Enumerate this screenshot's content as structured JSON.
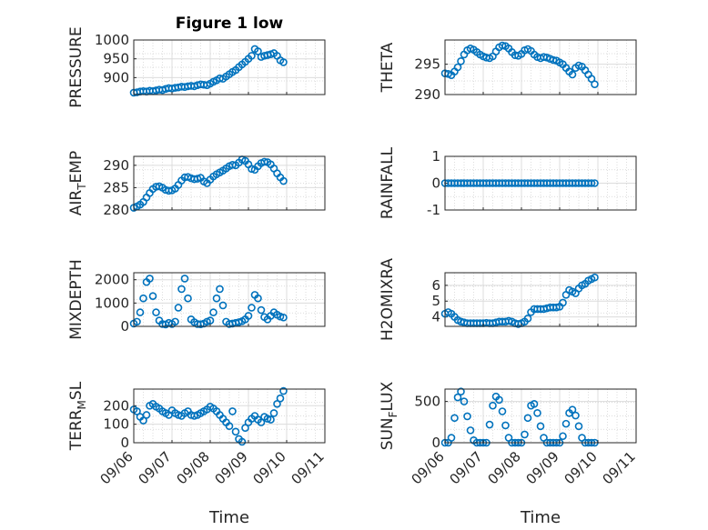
{
  "figure": {
    "title": "Figure 1 low",
    "xlabel": "Time",
    "marker_color": "#0072BD"
  },
  "chart_data": [
    {
      "id": "pressure",
      "type": "scatter",
      "ylabel": "PRESSURE",
      "xlim": [
        "09/06",
        "09/11"
      ],
      "ylim": [
        855,
        1000
      ],
      "yticks": [
        "900",
        "950",
        "1000"
      ],
      "x": [
        "09/06 00:00",
        "09/06 02:00",
        "09/06 04:00",
        "09/06 06:00",
        "09/06 08:00",
        "09/06 10:00",
        "09/06 12:00",
        "09/06 14:00",
        "09/06 16:00",
        "09/06 18:00",
        "09/06 20:00",
        "09/06 22:00",
        "09/07 00:00",
        "09/07 02:00",
        "09/07 04:00",
        "09/07 06:00",
        "09/07 08:00",
        "09/07 10:00",
        "09/07 12:00",
        "09/07 14:00",
        "09/07 16:00",
        "09/07 18:00",
        "09/07 20:00",
        "09/07 22:00",
        "09/08 00:00",
        "09/08 02:00",
        "09/08 04:00",
        "09/08 06:00",
        "09/08 08:00",
        "09/08 10:00",
        "09/08 12:00",
        "09/08 14:00",
        "09/08 16:00",
        "09/08 18:00",
        "09/08 20:00",
        "09/08 22:00",
        "09/09 00:00",
        "09/09 02:00",
        "09/09 04:00",
        "09/09 06:00",
        "09/09 08:00",
        "09/09 10:00",
        "09/09 12:00",
        "09/09 14:00",
        "09/09 16:00",
        "09/09 18:00",
        "09/09 20:00",
        "09/09 22:00"
      ],
      "y": [
        860,
        861,
        863,
        864,
        863,
        865,
        864,
        866,
        868,
        867,
        870,
        872,
        871,
        873,
        874,
        876,
        875,
        877,
        878,
        877,
        880,
        882,
        881,
        880,
        884,
        889,
        893,
        898,
        897,
        903,
        909,
        915,
        920,
        928,
        935,
        942,
        950,
        958,
        976,
        970,
        955,
        958,
        960,
        962,
        965,
        958,
        946,
        941
      ]
    },
    {
      "id": "theta",
      "type": "scatter",
      "ylabel": "THETA",
      "xlim": [
        "09/06",
        "09/11"
      ],
      "ylim": [
        290,
        299
      ],
      "yticks": [
        "290",
        "295"
      ],
      "x": [
        "09/06 00:00",
        "09/06 02:00",
        "09/06 04:00",
        "09/06 06:00",
        "09/06 08:00",
        "09/06 10:00",
        "09/06 12:00",
        "09/06 14:00",
        "09/06 16:00",
        "09/06 18:00",
        "09/06 20:00",
        "09/06 22:00",
        "09/07 00:00",
        "09/07 02:00",
        "09/07 04:00",
        "09/07 06:00",
        "09/07 08:00",
        "09/07 10:00",
        "09/07 12:00",
        "09/07 14:00",
        "09/07 16:00",
        "09/07 18:00",
        "09/07 20:00",
        "09/07 22:00",
        "09/08 00:00",
        "09/08 02:00",
        "09/08 04:00",
        "09/08 06:00",
        "09/08 08:00",
        "09/08 10:00",
        "09/08 12:00",
        "09/08 14:00",
        "09/08 16:00",
        "09/08 18:00",
        "09/08 20:00",
        "09/08 22:00",
        "09/09 00:00",
        "09/09 02:00",
        "09/09 04:00",
        "09/09 06:00",
        "09/09 08:00",
        "09/09 10:00",
        "09/09 12:00",
        "09/09 14:00",
        "09/09 16:00",
        "09/09 18:00",
        "09/09 20:00",
        "09/09 22:00"
      ],
      "y": [
        293.5,
        293.4,
        293.2,
        293.8,
        294.5,
        295.5,
        296.6,
        297.3,
        297.6,
        297.4,
        297.0,
        296.6,
        296.3,
        296.1,
        296.0,
        296.3,
        297.1,
        297.8,
        298.1,
        298.0,
        297.6,
        297.0,
        296.5,
        296.4,
        296.7,
        297.3,
        297.5,
        297.2,
        296.6,
        296.2,
        296.0,
        296.2,
        296.1,
        295.9,
        295.7,
        295.6,
        295.3,
        295.0,
        294.4,
        293.8,
        293.3,
        294.4,
        294.8,
        294.6,
        294.0,
        293.3,
        292.6,
        291.7
      ]
    },
    {
      "id": "air_temp",
      "type": "scatter",
      "ylabel": "AIR_TEMP",
      "xlim": [
        "09/06",
        "09/11"
      ],
      "ylim": [
        280,
        292
      ],
      "yticks": [
        "280",
        "285",
        "290"
      ],
      "x": [
        "09/06 00:00",
        "09/06 02:00",
        "09/06 04:00",
        "09/06 06:00",
        "09/06 08:00",
        "09/06 10:00",
        "09/06 12:00",
        "09/06 14:00",
        "09/06 16:00",
        "09/06 18:00",
        "09/06 20:00",
        "09/06 22:00",
        "09/07 00:00",
        "09/07 02:00",
        "09/07 04:00",
        "09/07 06:00",
        "09/07 08:00",
        "09/07 10:00",
        "09/07 12:00",
        "09/07 14:00",
        "09/07 16:00",
        "09/07 18:00",
        "09/07 20:00",
        "09/07 22:00",
        "09/08 00:00",
        "09/08 02:00",
        "09/08 04:00",
        "09/08 06:00",
        "09/08 08:00",
        "09/08 10:00",
        "09/08 12:00",
        "09/08 14:00",
        "09/08 16:00",
        "09/08 18:00",
        "09/08 20:00",
        "09/08 22:00",
        "09/09 00:00",
        "09/09 02:00",
        "09/09 04:00",
        "09/09 06:00",
        "09/09 08:00",
        "09/09 10:00",
        "09/09 12:00",
        "09/09 14:00",
        "09/09 16:00",
        "09/09 18:00",
        "09/09 20:00",
        "09/09 22:00"
      ],
      "y": [
        280.5,
        280.8,
        281.2,
        281.8,
        282.8,
        283.8,
        284.7,
        285.2,
        285.3,
        285.0,
        284.5,
        284.3,
        284.4,
        284.8,
        285.6,
        286.6,
        287.3,
        287.4,
        287.1,
        286.9,
        287.0,
        287.2,
        286.4,
        286.0,
        286.8,
        287.5,
        288.0,
        288.4,
        288.8,
        289.3,
        289.8,
        290.1,
        290.0,
        290.6,
        291.3,
        291.0,
        290.2,
        289.2,
        289.0,
        289.8,
        290.5,
        290.8,
        290.7,
        290.2,
        289.3,
        288.2,
        287.3,
        286.5
      ]
    },
    {
      "id": "rainfall",
      "type": "scatter",
      "ylabel": "RAINFALL",
      "xlim": [
        "09/06",
        "09/11"
      ],
      "ylim": [
        -1,
        1
      ],
      "yticks": [
        "-1",
        "0",
        "1"
      ],
      "x": [
        "09/06 00:00",
        "09/06 02:00",
        "09/06 04:00",
        "09/06 06:00",
        "09/06 08:00",
        "09/06 10:00",
        "09/06 12:00",
        "09/06 14:00",
        "09/06 16:00",
        "09/06 18:00",
        "09/06 20:00",
        "09/06 22:00",
        "09/07 00:00",
        "09/07 02:00",
        "09/07 04:00",
        "09/07 06:00",
        "09/07 08:00",
        "09/07 10:00",
        "09/07 12:00",
        "09/07 14:00",
        "09/07 16:00",
        "09/07 18:00",
        "09/07 20:00",
        "09/07 22:00",
        "09/08 00:00",
        "09/08 02:00",
        "09/08 04:00",
        "09/08 06:00",
        "09/08 08:00",
        "09/08 10:00",
        "09/08 12:00",
        "09/08 14:00",
        "09/08 16:00",
        "09/08 18:00",
        "09/08 20:00",
        "09/08 22:00",
        "09/09 00:00",
        "09/09 02:00",
        "09/09 04:00",
        "09/09 06:00",
        "09/09 08:00",
        "09/09 10:00",
        "09/09 12:00",
        "09/09 14:00",
        "09/09 16:00",
        "09/09 18:00",
        "09/09 20:00",
        "09/09 22:00"
      ],
      "y": [
        0,
        0,
        0,
        0,
        0,
        0,
        0,
        0,
        0,
        0,
        0,
        0,
        0,
        0,
        0,
        0,
        0,
        0,
        0,
        0,
        0,
        0,
        0,
        0,
        0,
        0,
        0,
        0,
        0,
        0,
        0,
        0,
        0,
        0,
        0,
        0,
        0,
        0,
        0,
        0,
        0,
        0,
        0,
        0,
        0,
        0,
        0,
        0
      ]
    },
    {
      "id": "mixdepth",
      "type": "scatter",
      "ylabel": "MIXDEPTH",
      "xlim": [
        "09/06",
        "09/11"
      ],
      "ylim": [
        0,
        2300
      ],
      "yticks": [
        "0",
        "1000",
        "2000"
      ],
      "x": [
        "09/06 00:00",
        "09/06 02:00",
        "09/06 04:00",
        "09/06 06:00",
        "09/06 08:00",
        "09/06 10:00",
        "09/06 12:00",
        "09/06 14:00",
        "09/06 16:00",
        "09/06 18:00",
        "09/06 20:00",
        "09/06 22:00",
        "09/07 00:00",
        "09/07 02:00",
        "09/07 04:00",
        "09/07 06:00",
        "09/07 08:00",
        "09/07 10:00",
        "09/07 12:00",
        "09/07 14:00",
        "09/07 16:00",
        "09/07 18:00",
        "09/07 20:00",
        "09/07 22:00",
        "09/08 00:00",
        "09/08 02:00",
        "09/08 04:00",
        "09/08 06:00",
        "09/08 08:00",
        "09/08 10:00",
        "09/08 12:00",
        "09/08 14:00",
        "09/08 16:00",
        "09/08 18:00",
        "09/08 20:00",
        "09/08 22:00",
        "09/09 00:00",
        "09/09 02:00",
        "09/09 04:00",
        "09/09 06:00",
        "09/09 08:00",
        "09/09 10:00",
        "09/09 12:00",
        "09/09 14:00",
        "09/09 16:00",
        "09/09 18:00",
        "09/09 20:00",
        "09/09 22:00"
      ],
      "y": [
        120,
        200,
        600,
        1200,
        1900,
        2050,
        1300,
        600,
        250,
        100,
        80,
        150,
        100,
        200,
        800,
        1600,
        2050,
        1200,
        300,
        180,
        100,
        90,
        120,
        200,
        250,
        600,
        1200,
        1600,
        900,
        200,
        100,
        120,
        150,
        180,
        220,
        300,
        450,
        800,
        1350,
        1200,
        700,
        400,
        300,
        450,
        600,
        500,
        420,
        380
      ]
    },
    {
      "id": "h2omixra",
      "type": "scatter",
      "ylabel": "H2OMIXRA",
      "xlim": [
        "09/06",
        "09/11"
      ],
      "ylim": [
        3.4,
        6.8
      ],
      "yticks": [
        "4",
        "5",
        "6"
      ],
      "x": [
        "09/06 00:00",
        "09/06 02:00",
        "09/06 04:00",
        "09/06 06:00",
        "09/06 08:00",
        "09/06 10:00",
        "09/06 12:00",
        "09/06 14:00",
        "09/06 16:00",
        "09/06 18:00",
        "09/06 20:00",
        "09/06 22:00",
        "09/07 00:00",
        "09/07 02:00",
        "09/07 04:00",
        "09/07 06:00",
        "09/07 08:00",
        "09/07 10:00",
        "09/07 12:00",
        "09/07 14:00",
        "09/07 16:00",
        "09/07 18:00",
        "09/07 20:00",
        "09/07 22:00",
        "09/08 00:00",
        "09/08 02:00",
        "09/08 04:00",
        "09/08 06:00",
        "09/08 08:00",
        "09/08 10:00",
        "09/08 12:00",
        "09/08 14:00",
        "09/08 16:00",
        "09/08 18:00",
        "09/08 20:00",
        "09/08 22:00",
        "09/09 00:00",
        "09/09 02:00",
        "09/09 04:00",
        "09/09 06:00",
        "09/09 08:00",
        "09/09 10:00",
        "09/09 12:00",
        "09/09 14:00",
        "09/09 16:00",
        "09/09 18:00",
        "09/09 20:00",
        "09/09 22:00"
      ],
      "y": [
        4.2,
        4.3,
        4.2,
        4.0,
        3.8,
        3.7,
        3.65,
        3.6,
        3.6,
        3.6,
        3.6,
        3.6,
        3.6,
        3.62,
        3.6,
        3.6,
        3.65,
        3.7,
        3.7,
        3.7,
        3.75,
        3.7,
        3.6,
        3.55,
        3.6,
        3.7,
        3.9,
        4.3,
        4.5,
        4.5,
        4.5,
        4.5,
        4.55,
        4.6,
        4.6,
        4.6,
        4.65,
        4.9,
        5.4,
        5.7,
        5.6,
        5.5,
        5.8,
        6.0,
        6.1,
        6.3,
        6.4,
        6.5
      ]
    },
    {
      "id": "terr_msl",
      "type": "scatter",
      "ylabel": "TERR_MSL",
      "xlim": [
        "09/06",
        "09/11"
      ],
      "ylim": [
        0,
        290
      ],
      "yticks": [
        "0",
        "100",
        "200"
      ],
      "x": [
        "09/06 00:00",
        "09/06 02:00",
        "09/06 04:00",
        "09/06 06:00",
        "09/06 08:00",
        "09/06 10:00",
        "09/06 12:00",
        "09/06 14:00",
        "09/06 16:00",
        "09/06 18:00",
        "09/06 20:00",
        "09/06 22:00",
        "09/07 00:00",
        "09/07 02:00",
        "09/07 04:00",
        "09/07 06:00",
        "09/07 08:00",
        "09/07 10:00",
        "09/07 12:00",
        "09/07 14:00",
        "09/07 16:00",
        "09/07 18:00",
        "09/07 20:00",
        "09/07 22:00",
        "09/08 00:00",
        "09/08 02:00",
        "09/08 04:00",
        "09/08 06:00",
        "09/08 08:00",
        "09/08 10:00",
        "09/08 12:00",
        "09/08 14:00",
        "09/08 16:00",
        "09/08 18:00",
        "09/08 20:00",
        "09/08 22:00",
        "09/09 00:00",
        "09/09 02:00",
        "09/09 04:00",
        "09/09 06:00",
        "09/09 08:00",
        "09/09 10:00",
        "09/09 12:00",
        "09/09 14:00",
        "09/09 16:00",
        "09/09 18:00",
        "09/09 20:00",
        "09/09 22:00"
      ],
      "y": [
        180,
        170,
        140,
        120,
        150,
        200,
        210,
        195,
        185,
        170,
        160,
        150,
        175,
        160,
        150,
        145,
        160,
        170,
        150,
        145,
        150,
        160,
        170,
        180,
        195,
        185,
        170,
        150,
        130,
        110,
        90,
        170,
        60,
        20,
        5,
        80,
        110,
        130,
        145,
        125,
        110,
        140,
        130,
        125,
        160,
        210,
        240,
        280
      ]
    },
    {
      "id": "sun_flux",
      "type": "scatter",
      "ylabel": "SUN_FLUX",
      "xlim": [
        "09/06",
        "09/11"
      ],
      "ylim": [
        0,
        650
      ],
      "yticks": [
        "0",
        "500"
      ],
      "x": [
        "09/06 00:00",
        "09/06 02:00",
        "09/06 04:00",
        "09/06 06:00",
        "09/06 08:00",
        "09/06 10:00",
        "09/06 12:00",
        "09/06 14:00",
        "09/06 16:00",
        "09/06 18:00",
        "09/06 20:00",
        "09/06 22:00",
        "09/07 00:00",
        "09/07 02:00",
        "09/07 04:00",
        "09/07 06:00",
        "09/07 08:00",
        "09/07 10:00",
        "09/07 12:00",
        "09/07 14:00",
        "09/07 16:00",
        "09/07 18:00",
        "09/07 20:00",
        "09/07 22:00",
        "09/08 00:00",
        "09/08 02:00",
        "09/08 04:00",
        "09/08 06:00",
        "09/08 08:00",
        "09/08 10:00",
        "09/08 12:00",
        "09/08 14:00",
        "09/08 16:00",
        "09/08 18:00",
        "09/08 20:00",
        "09/08 22:00",
        "09/09 00:00",
        "09/09 02:00",
        "09/09 04:00",
        "09/09 06:00",
        "09/09 08:00",
        "09/09 10:00",
        "09/09 12:00",
        "09/09 14:00",
        "09/09 16:00",
        "09/09 18:00",
        "09/09 20:00",
        "09/09 22:00"
      ],
      "y": [
        0,
        0,
        60,
        300,
        550,
        620,
        500,
        320,
        150,
        30,
        0,
        0,
        0,
        0,
        220,
        450,
        560,
        520,
        380,
        210,
        60,
        0,
        0,
        0,
        0,
        100,
        300,
        450,
        470,
        360,
        200,
        60,
        0,
        0,
        0,
        0,
        0,
        80,
        230,
        360,
        400,
        330,
        200,
        60,
        0,
        0,
        0,
        0
      ]
    }
  ],
  "panels": [
    {
      "ylabel_main": "PRESSURE",
      "ylabel_sub": ""
    },
    {
      "ylabel_main": "THETA",
      "ylabel_sub": ""
    },
    {
      "ylabel_main": "AIR",
      "ylabel_sub": "T",
      "ylabel_rest": "EMP"
    },
    {
      "ylabel_main": "RAINFALL",
      "ylabel_sub": ""
    },
    {
      "ylabel_main": "MIXDEPTH",
      "ylabel_sub": ""
    },
    {
      "ylabel_main": "H2OMIXRA",
      "ylabel_sub": ""
    },
    {
      "ylabel_main": "TERR",
      "ylabel_sub": "M",
      "ylabel_rest": "SL"
    },
    {
      "ylabel_main": "SUN",
      "ylabel_sub": "F",
      "ylabel_rest": "LUX"
    }
  ],
  "xticks": [
    "09/06",
    "09/07",
    "09/08",
    "09/09",
    "09/10",
    "09/11"
  ]
}
